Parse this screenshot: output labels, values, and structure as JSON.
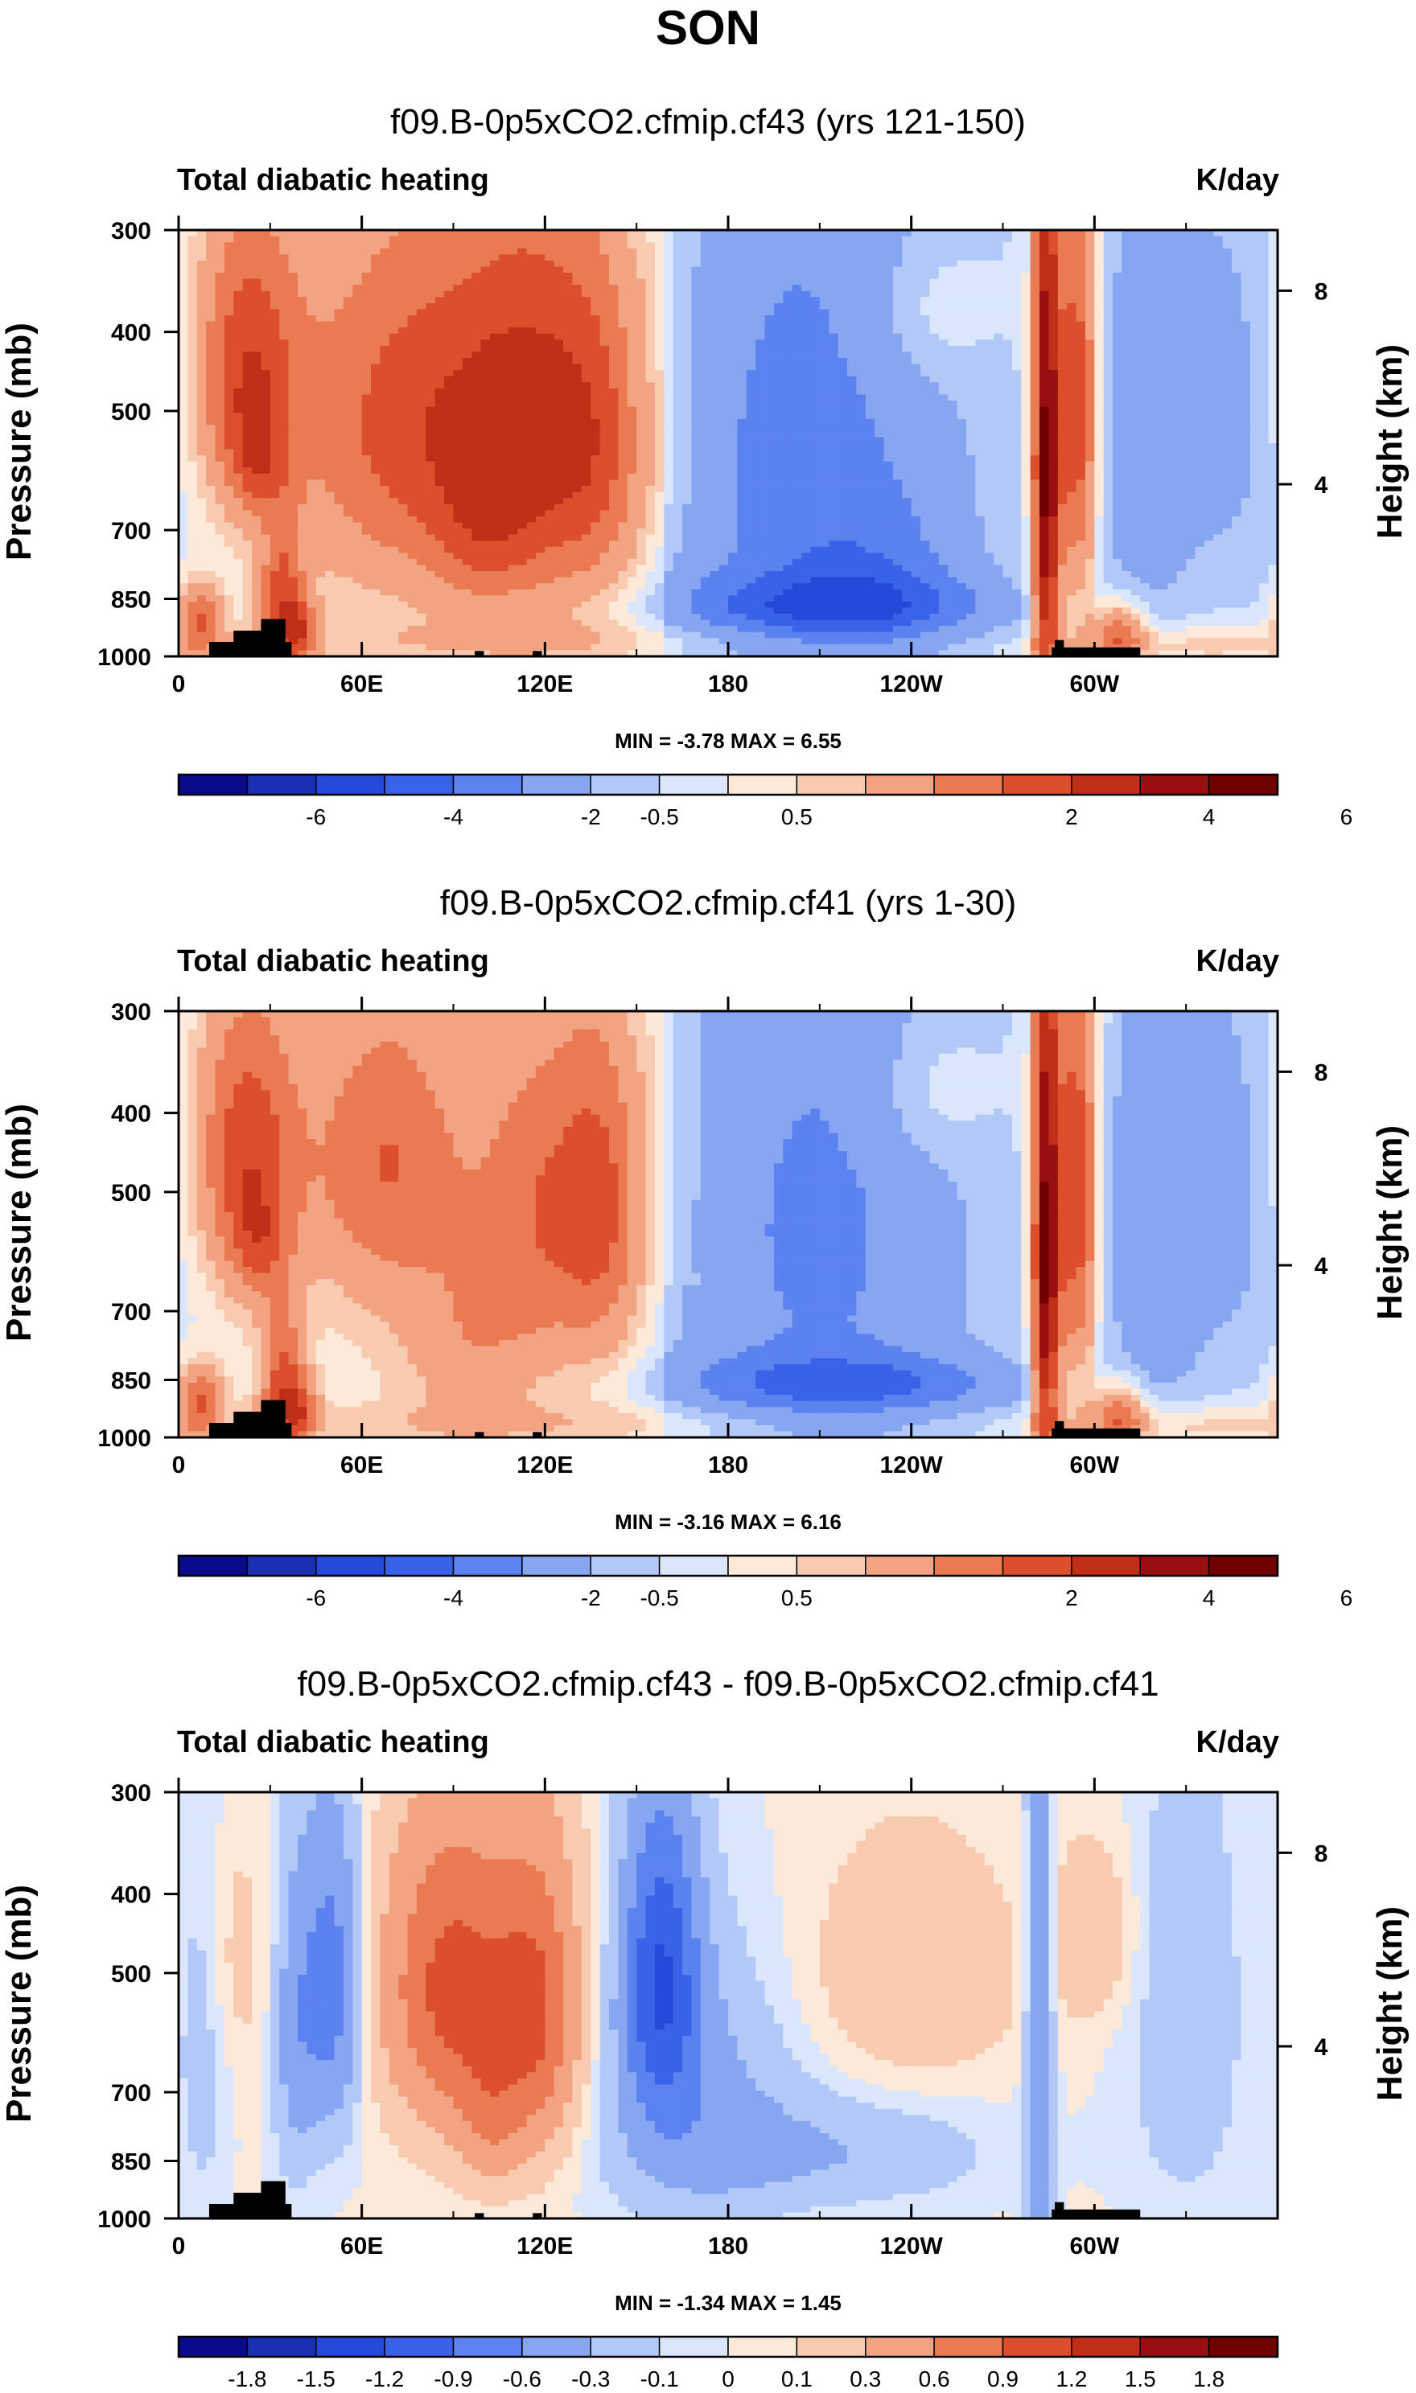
{
  "page": {
    "title": "SON"
  },
  "chart_data": [
    {
      "type": "heatmap",
      "title": "f09.B-0p5xCO2.cfmip.cf43 (yrs 121-150)",
      "left_label": "Total diabatic heating",
      "right_label": "K/day",
      "ylabel": "Pressure (mb)",
      "ylabel_right": "Height (km)",
      "x_ticks": [
        "0",
        "60E",
        "120E",
        "180",
        "120W",
        "60W"
      ],
      "x_tick_lon": [
        0,
        60,
        120,
        180,
        240,
        300
      ],
      "xlim": [
        0,
        360
      ],
      "y_ticks": [
        "300",
        "400",
        "500",
        "700",
        "850",
        "1000"
      ],
      "y_tick_values": [
        300,
        400,
        500,
        700,
        850,
        1000
      ],
      "ylim": [
        1000,
        300
      ],
      "height_ticks": [
        "8",
        "4"
      ],
      "height_tick_pressure": [
        356,
        615
      ],
      "stats": "MIN =  -3.78  MAX =   6.55",
      "colorbar_labels": [
        "-6",
        "-4",
        "-2",
        "-0.5",
        "0.5",
        "2",
        "4",
        "6"
      ],
      "colors": [
        "#0a0a8a",
        "#1b2fb5",
        "#2448d8",
        "#3a62e8",
        "#5b82ee",
        "#86a6f2",
        "#b2c8f7",
        "#d9e6fc",
        "#fde9da",
        "#f8cab0",
        "#f2a482",
        "#ea7a52",
        "#dd4f2c",
        "#c12e18",
        "#990f0f",
        "#700000"
      ],
      "diff": false,
      "blobs": [
        {
          "lon": 22,
          "p": 450,
          "slon": 12,
          "sp": 130,
          "v": 3.6
        },
        {
          "lon": 26,
          "p": 580,
          "slon": 6,
          "sp": 60,
          "v": 1.6
        },
        {
          "lon": 34,
          "p": 860,
          "slon": 5,
          "sp": 130,
          "v": 3.2
        },
        {
          "lon": 40,
          "p": 930,
          "slon": 4,
          "sp": 60,
          "v": 2.4
        },
        {
          "lon": 7,
          "p": 900,
          "slon": 5,
          "sp": 60,
          "v": 3.0
        },
        {
          "lon": 75,
          "p": 520,
          "slon": 26,
          "sp": 190,
          "v": 3.2
        },
        {
          "lon": 118,
          "p": 520,
          "slon": 20,
          "sp": 210,
          "v": 3.6
        },
        {
          "lon": 100,
          "p": 720,
          "slon": 12,
          "sp": 100,
          "v": 1.2
        },
        {
          "lon": 140,
          "p": 560,
          "slon": 12,
          "sp": 190,
          "v": 1.8
        },
        {
          "lon": 205,
          "p": 560,
          "slon": 38,
          "sp": 380,
          "v": -2.1
        },
        {
          "lon": 225,
          "p": 800,
          "slon": 22,
          "sp": 120,
          "v": -1.2
        },
        {
          "lon": 215,
          "p": 870,
          "slon": 36,
          "sp": 55,
          "v": -2.4
        },
        {
          "lon": 245,
          "p": 380,
          "slon": 14,
          "sp": 60,
          "v": 0.8
        },
        {
          "lon": 284,
          "p": 600,
          "slon": 3,
          "sp": 360,
          "v": 6.0
        },
        {
          "lon": 294,
          "p": 500,
          "slon": 5,
          "sp": 220,
          "v": 3.8
        },
        {
          "lon": 308,
          "p": 940,
          "slon": 6,
          "sp": 60,
          "v": 3.0
        },
        {
          "lon": 315,
          "p": 550,
          "slon": 12,
          "sp": 280,
          "v": -1.2
        },
        {
          "lon": 345,
          "p": 500,
          "slon": 18,
          "sp": 250,
          "v": -1.0
        },
        {
          "lon": 120,
          "p": 960,
          "slon": 70,
          "sp": 40,
          "v": 0.7
        },
        {
          "lon": 330,
          "p": 970,
          "slon": 30,
          "sp": 40,
          "v": 1.0
        }
      ]
    },
    {
      "type": "heatmap",
      "title": "f09.B-0p5xCO2.cfmip.cf41 (yrs 1-30)",
      "left_label": "Total diabatic heating",
      "right_label": "K/day",
      "ylabel": "Pressure (mb)",
      "ylabel_right": "Height (km)",
      "x_ticks": [
        "0",
        "60E",
        "120E",
        "180",
        "120W",
        "60W"
      ],
      "x_tick_lon": [
        0,
        60,
        120,
        180,
        240,
        300
      ],
      "xlim": [
        0,
        360
      ],
      "y_ticks": [
        "300",
        "400",
        "500",
        "700",
        "850",
        "1000"
      ],
      "y_tick_values": [
        300,
        400,
        500,
        700,
        850,
        1000
      ],
      "ylim": [
        1000,
        300
      ],
      "height_ticks": [
        "8",
        "4"
      ],
      "height_tick_pressure": [
        356,
        615
      ],
      "stats": "MIN =  -3.16  MAX =   6.16",
      "colorbar_labels": [
        "-6",
        "-4",
        "-2",
        "-0.5",
        "0.5",
        "2",
        "4",
        "6"
      ],
      "colors": [
        "#0a0a8a",
        "#1b2fb5",
        "#2448d8",
        "#3a62e8",
        "#5b82ee",
        "#86a6f2",
        "#b2c8f7",
        "#d9e6fc",
        "#fde9da",
        "#f8cab0",
        "#f2a482",
        "#ea7a52",
        "#dd4f2c",
        "#c12e18",
        "#990f0f",
        "#700000"
      ],
      "diff": false,
      "blobs": [
        {
          "lon": 22,
          "p": 450,
          "slon": 12,
          "sp": 130,
          "v": 3.6
        },
        {
          "lon": 26,
          "p": 580,
          "slon": 6,
          "sp": 60,
          "v": 1.6
        },
        {
          "lon": 34,
          "p": 860,
          "slon": 5,
          "sp": 130,
          "v": 3.2
        },
        {
          "lon": 40,
          "p": 930,
          "slon": 4,
          "sp": 60,
          "v": 2.4
        },
        {
          "lon": 7,
          "p": 900,
          "slon": 5,
          "sp": 60,
          "v": 3.0
        },
        {
          "lon": 68,
          "p": 460,
          "slon": 18,
          "sp": 140,
          "v": 2.8
        },
        {
          "lon": 120,
          "p": 520,
          "slon": 16,
          "sp": 180,
          "v": 2.6
        },
        {
          "lon": 140,
          "p": 520,
          "slon": 10,
          "sp": 180,
          "v": 2.4
        },
        {
          "lon": 95,
          "p": 760,
          "slon": 16,
          "sp": 140,
          "v": 1.4
        },
        {
          "lon": 210,
          "p": 560,
          "slon": 36,
          "sp": 380,
          "v": -2.0
        },
        {
          "lon": 220,
          "p": 860,
          "slon": 40,
          "sp": 50,
          "v": -2.2
        },
        {
          "lon": 245,
          "p": 380,
          "slon": 14,
          "sp": 60,
          "v": 0.8
        },
        {
          "lon": 284,
          "p": 600,
          "slon": 3,
          "sp": 360,
          "v": 6.0
        },
        {
          "lon": 294,
          "p": 500,
          "slon": 5,
          "sp": 220,
          "v": 3.8
        },
        {
          "lon": 308,
          "p": 940,
          "slon": 6,
          "sp": 60,
          "v": 3.0
        },
        {
          "lon": 318,
          "p": 550,
          "slon": 12,
          "sp": 280,
          "v": -1.3
        },
        {
          "lon": 345,
          "p": 500,
          "slon": 18,
          "sp": 250,
          "v": -1.0
        },
        {
          "lon": 120,
          "p": 960,
          "slon": 70,
          "sp": 40,
          "v": 0.7
        },
        {
          "lon": 330,
          "p": 970,
          "slon": 30,
          "sp": 40,
          "v": 1.0
        }
      ]
    },
    {
      "type": "heatmap",
      "title": "f09.B-0p5xCO2.cfmip.cf43 - f09.B-0p5xCO2.cfmip.cf41",
      "left_label": "Total diabatic heating",
      "right_label": "K/day",
      "ylabel": "Pressure (mb)",
      "ylabel_right": "Height (km)",
      "x_ticks": [
        "0",
        "60E",
        "120E",
        "180",
        "120W",
        "60W"
      ],
      "x_tick_lon": [
        0,
        60,
        120,
        180,
        240,
        300
      ],
      "xlim": [
        0,
        360
      ],
      "y_ticks": [
        "300",
        "400",
        "500",
        "700",
        "850",
        "1000"
      ],
      "y_tick_values": [
        300,
        400,
        500,
        700,
        850,
        1000
      ],
      "ylim": [
        1000,
        300
      ],
      "height_ticks": [
        "8",
        "4"
      ],
      "height_tick_pressure": [
        356,
        615
      ],
      "stats": "MIN =  -1.34  MAX =   1.45",
      "colorbar_labels": [
        "-1.8",
        "-1.5",
        "-1.2",
        "-0.9",
        "-0.6",
        "-0.3",
        "-0.1",
        "0",
        "0.1",
        "0.3",
        "0.6",
        "0.9",
        "1.2",
        "1.5",
        "1.8"
      ],
      "colors": [
        "#0a0a8a",
        "#1b2fb5",
        "#2448d8",
        "#3a62e8",
        "#5b82ee",
        "#86a6f2",
        "#b2c8f7",
        "#d9e6fc",
        "#fde9da",
        "#f8cab0",
        "#f2a482",
        "#ea7a52",
        "#dd4f2c",
        "#c12e18",
        "#990f0f",
        "#700000"
      ],
      "diff": true,
      "blobs": [
        {
          "lon": 50,
          "p": 520,
          "slon": 7,
          "sp": 170,
          "v": -0.8
        },
        {
          "lon": 38,
          "p": 600,
          "slon": 5,
          "sp": 200,
          "v": -0.4
        },
        {
          "lon": 90,
          "p": 520,
          "slon": 16,
          "sp": 160,
          "v": 1.0
        },
        {
          "lon": 118,
          "p": 560,
          "slon": 10,
          "sp": 170,
          "v": 0.8
        },
        {
          "lon": 102,
          "p": 760,
          "slon": 8,
          "sp": 100,
          "v": 0.4
        },
        {
          "lon": 158,
          "p": 500,
          "slon": 9,
          "sp": 160,
          "v": -1.1
        },
        {
          "lon": 170,
          "p": 720,
          "slon": 22,
          "sp": 200,
          "v": -0.4
        },
        {
          "lon": 215,
          "p": 830,
          "slon": 35,
          "sp": 90,
          "v": -0.3
        },
        {
          "lon": 240,
          "p": 500,
          "slon": 24,
          "sp": 120,
          "v": 0.25
        },
        {
          "lon": 282,
          "p": 600,
          "slon": 3,
          "sp": 380,
          "v": -0.6
        },
        {
          "lon": 8,
          "p": 600,
          "slon": 6,
          "sp": 260,
          "v": -0.2
        },
        {
          "lon": 18,
          "p": 480,
          "slon": 8,
          "sp": 120,
          "v": 0.15
        },
        {
          "lon": 330,
          "p": 560,
          "slon": 14,
          "sp": 280,
          "v": -0.25
        },
        {
          "lon": 300,
          "p": 450,
          "slon": 10,
          "sp": 80,
          "v": 0.25
        }
      ]
    }
  ]
}
